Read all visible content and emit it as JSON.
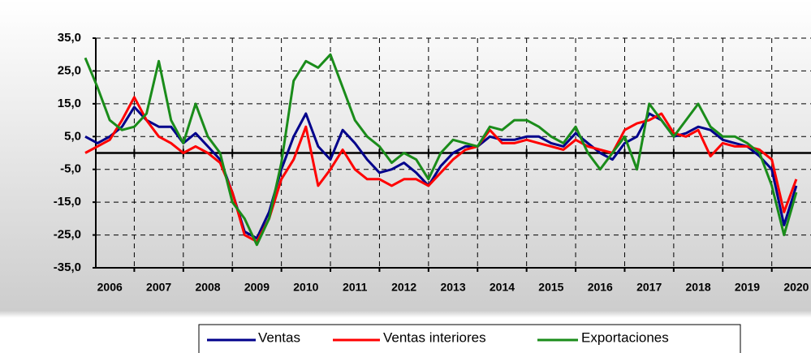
{
  "chart_data": {
    "type": "line",
    "x": [
      2006,
      2006.25,
      2006.5,
      2006.75,
      2007,
      2007.25,
      2007.5,
      2007.75,
      2008,
      2008.25,
      2008.5,
      2008.75,
      2009,
      2009.25,
      2009.5,
      2009.75,
      2010,
      2010.25,
      2010.5,
      2010.75,
      2011,
      2011.25,
      2011.5,
      2011.75,
      2012,
      2012.25,
      2012.5,
      2012.75,
      2013,
      2013.25,
      2013.5,
      2013.75,
      2014,
      2014.25,
      2014.5,
      2014.75,
      2015,
      2015.25,
      2015.5,
      2015.75,
      2016,
      2016.25,
      2016.5,
      2016.75,
      2017,
      2017.25,
      2017.5,
      2017.75,
      2018,
      2018.25,
      2018.5,
      2018.75,
      2019,
      2019.25,
      2019.5,
      2019.75,
      2020,
      2020.25,
      2020.5
    ],
    "series": [
      {
        "name": "Ventas",
        "color": "#00008b",
        "values": [
          5,
          3,
          5,
          8,
          14,
          10,
          8,
          8,
          3,
          6,
          2,
          -2,
          -12,
          -24,
          -26,
          -18,
          -5,
          5,
          12,
          2,
          -2,
          7,
          3,
          -2,
          -6,
          -5,
          -3,
          -6,
          -10,
          -4,
          0,
          2,
          2,
          5,
          4,
          4,
          5,
          5,
          3,
          2,
          6,
          3,
          0,
          -2,
          3,
          5,
          12,
          10,
          5,
          6,
          8,
          7,
          4,
          3,
          2,
          -1,
          -5,
          -22,
          -10
        ]
      },
      {
        "name": "Ventas interiores",
        "color": "#ff0000",
        "values": [
          0,
          2,
          4,
          10,
          17,
          10,
          5,
          3,
          0,
          2,
          0,
          -3,
          -12,
          -25,
          -27,
          -20,
          -8,
          -2,
          8,
          -10,
          -5,
          1,
          -5,
          -8,
          -8,
          -10,
          -8,
          -8,
          -10,
          -6,
          -2,
          1,
          2,
          7,
          3,
          3,
          4,
          3,
          2,
          1,
          4,
          2,
          1,
          0,
          7,
          9,
          10,
          12,
          6,
          5,
          7,
          -1,
          3,
          2,
          2,
          1,
          -2,
          -18,
          -8
        ]
      },
      {
        "name": "Exportaciones",
        "color": "#1a8c1a",
        "values": [
          29,
          20,
          10,
          7,
          8,
          12,
          28,
          10,
          3,
          15,
          5,
          0,
          -15,
          -20,
          -28,
          -20,
          -3,
          22,
          28,
          26,
          30,
          20,
          10,
          5,
          2,
          -3,
          0,
          -2,
          -8,
          0,
          4,
          3,
          2,
          8,
          7,
          10,
          10,
          8,
          5,
          3,
          8,
          0,
          -5,
          0,
          5,
          -5,
          15,
          10,
          5,
          10,
          15,
          8,
          5,
          5,
          3,
          0,
          -10,
          -25,
          -12
        ]
      }
    ],
    "xlim": [
      2006,
      2020.75
    ],
    "xticks": [
      {
        "value": 2006.5,
        "label": "2006"
      },
      {
        "value": 2007.5,
        "label": "2007"
      },
      {
        "value": 2008.5,
        "label": "2008"
      },
      {
        "value": 2009.5,
        "label": "2009"
      },
      {
        "value": 2010.5,
        "label": "2010"
      },
      {
        "value": 2011.5,
        "label": "2011"
      },
      {
        "value": 2012.5,
        "label": "2012"
      },
      {
        "value": 2013.5,
        "label": "2013"
      },
      {
        "value": 2014.5,
        "label": "2014"
      },
      {
        "value": 2015.5,
        "label": "2015"
      },
      {
        "value": 2016.5,
        "label": "2016"
      },
      {
        "value": 2017.5,
        "label": "2017"
      },
      {
        "value": 2018.5,
        "label": "2018"
      },
      {
        "value": 2019.5,
        "label": "2019"
      },
      {
        "value": 2020.5,
        "label": "2020"
      }
    ],
    "xgrid": [
      2007,
      2008,
      2009,
      2010,
      2011,
      2012,
      2013,
      2014,
      2015,
      2016,
      2017,
      2018,
      2019,
      2020
    ],
    "ylim": [
      -35,
      35
    ],
    "yticks": [
      {
        "value": 35,
        "label": "35,0"
      },
      {
        "value": 25,
        "label": "25,0"
      },
      {
        "value": 15,
        "label": "15,0"
      },
      {
        "value": 5,
        "label": "5,0"
      },
      {
        "value": -5,
        "label": "-5,0"
      },
      {
        "value": -15,
        "label": "-15,0"
      },
      {
        "value": -25,
        "label": "-25,0"
      },
      {
        "value": -35,
        "label": "-35,0"
      }
    ],
    "grid": true
  }
}
